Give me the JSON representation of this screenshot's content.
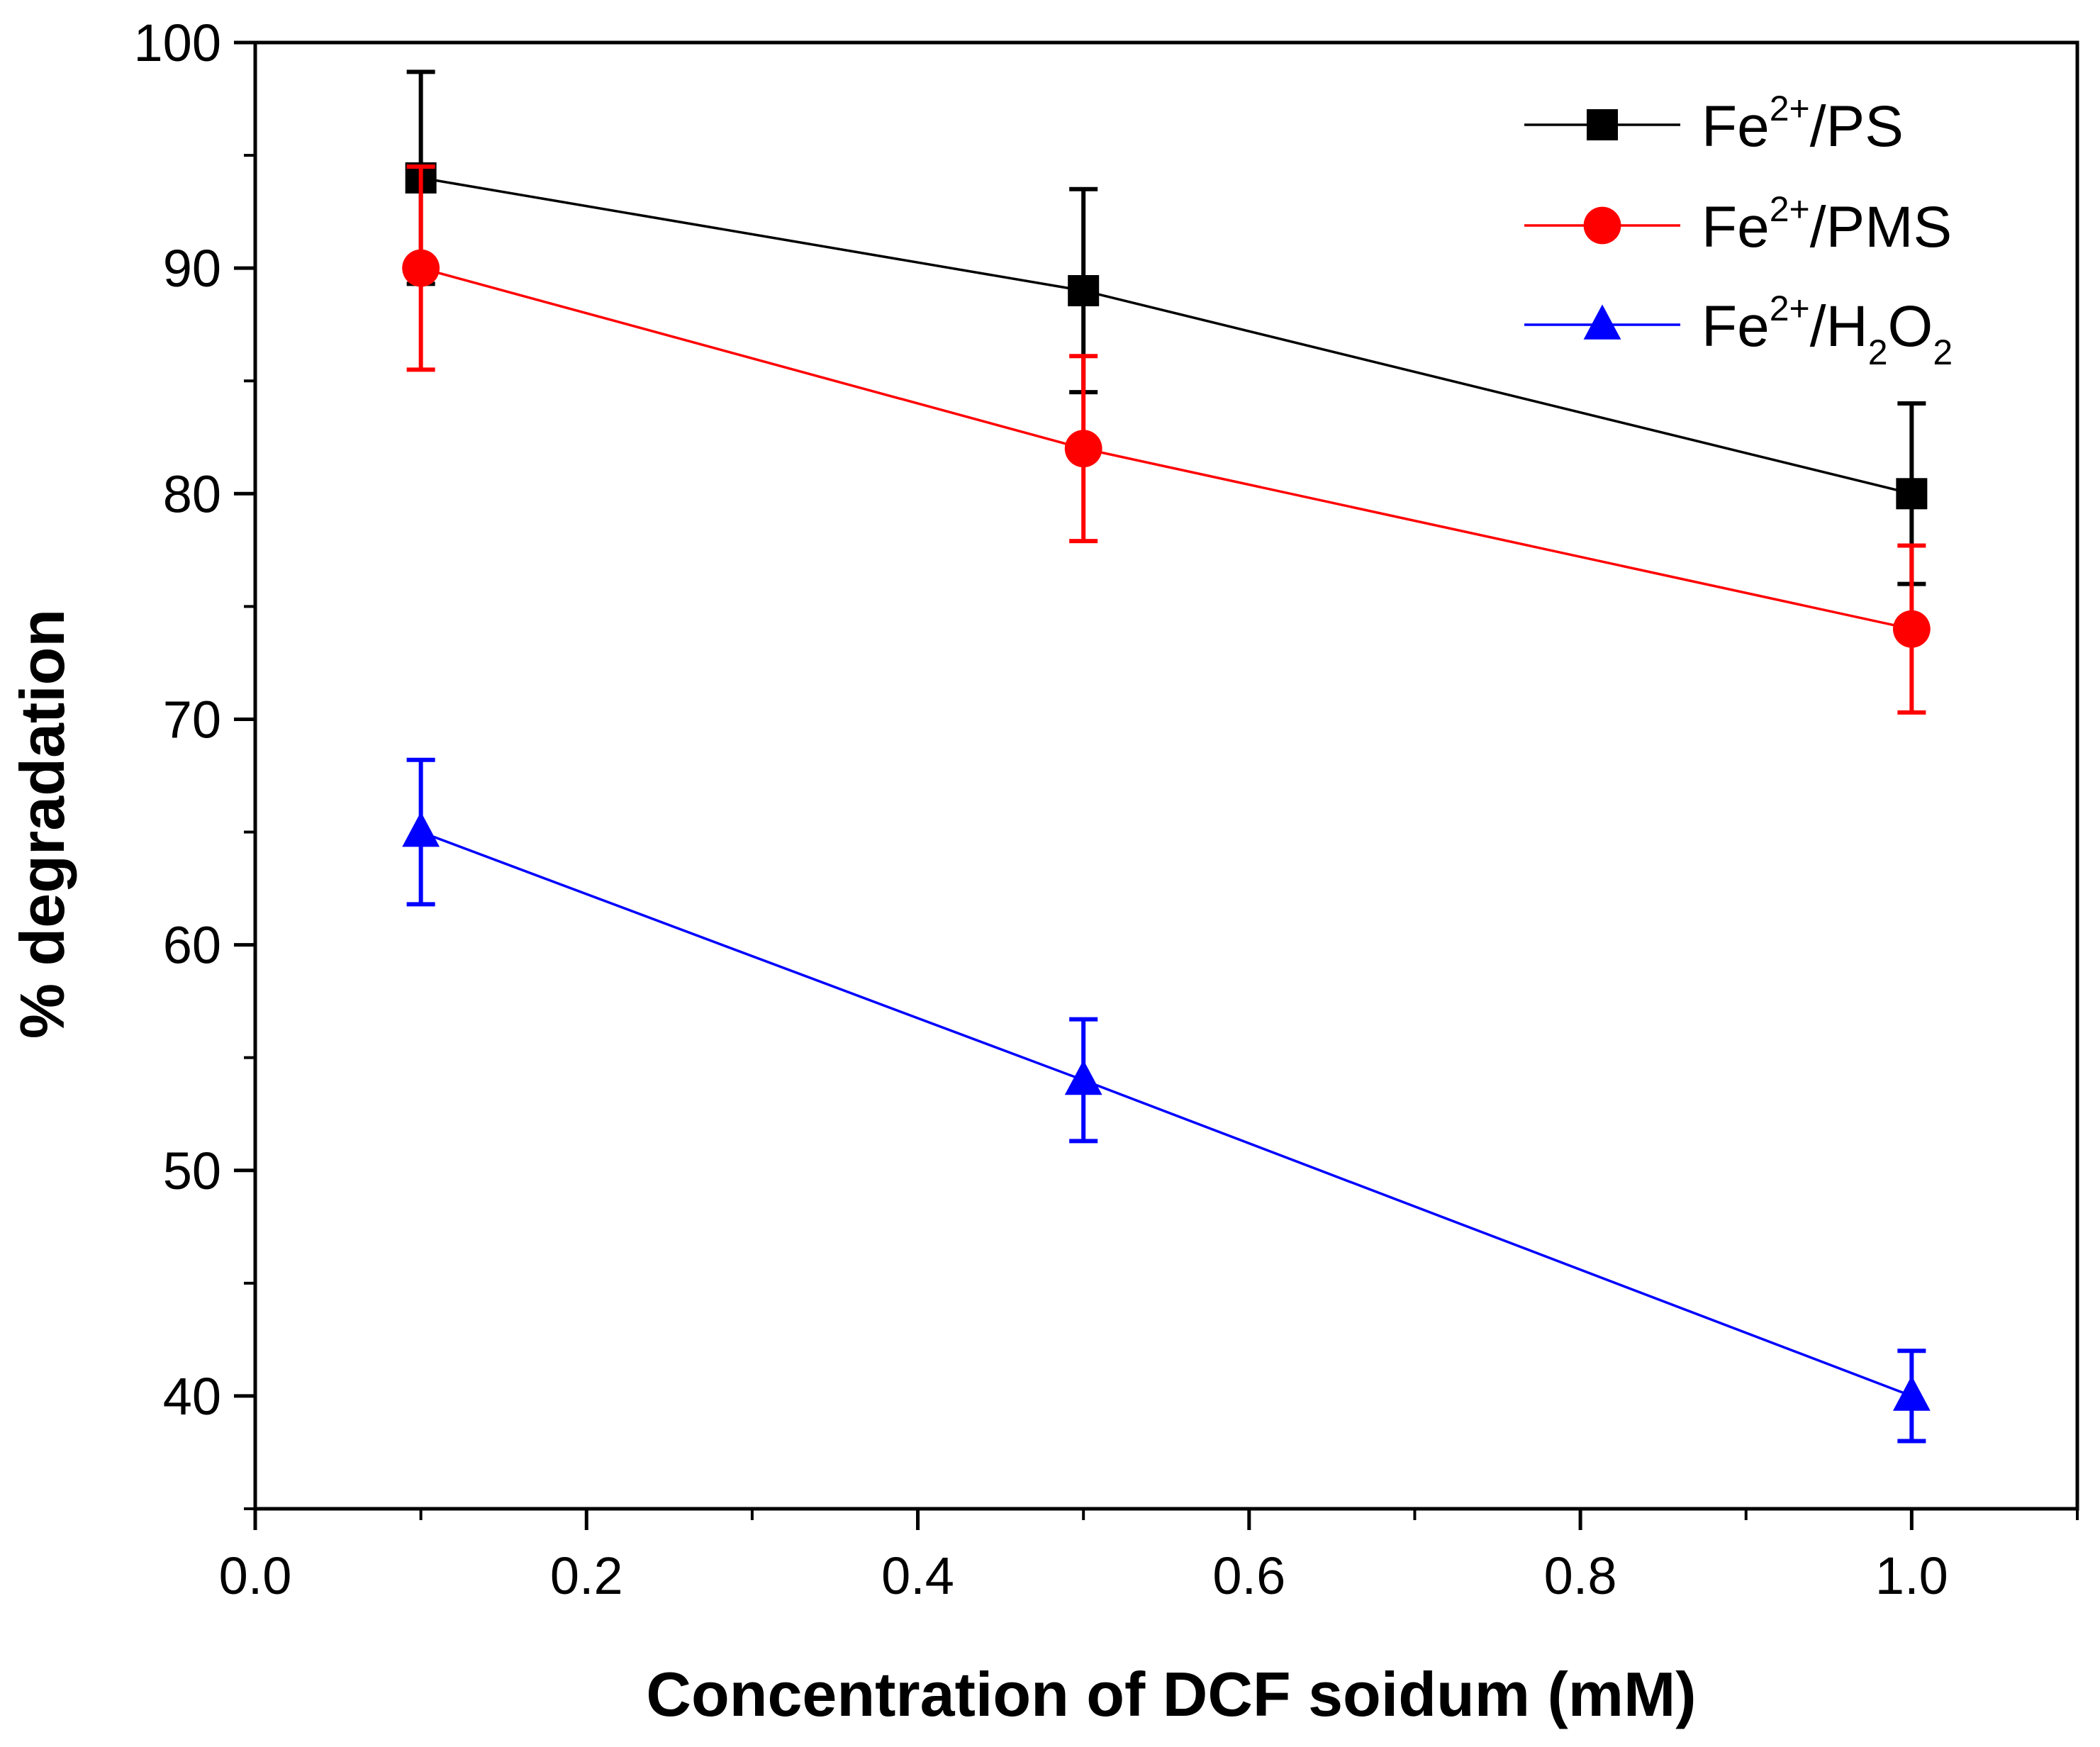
{
  "chart_data": {
    "type": "line",
    "title": "",
    "xlabel": "Concentration of DCF soidum (mM)",
    "ylabel": "% degradation",
    "xlim": [
      0.0,
      1.1
    ],
    "ylim": [
      35,
      100
    ],
    "xticks": [
      0.0,
      0.2,
      0.4,
      0.6,
      0.8,
      1.0
    ],
    "xtick_labels": [
      "0.0",
      "0.2",
      "0.4",
      "0.6",
      "0.8",
      "1.0"
    ],
    "yticks": [
      40,
      50,
      60,
      70,
      80,
      90,
      100
    ],
    "ytick_labels": [
      "40",
      "50",
      "60",
      "70",
      "80",
      "90",
      "100"
    ],
    "grid": false,
    "legend_position": "top-right",
    "x": [
      0.1,
      0.5,
      1.0
    ],
    "series": [
      {
        "name": "Fe2+/PS",
        "legend": {
          "base": "Fe",
          "sup": "2+",
          "rest": "/PS"
        },
        "color": "#000000",
        "marker": "square",
        "values": [
          94,
          89,
          80
        ],
        "errors": [
          4.7,
          4.5,
          4.0
        ]
      },
      {
        "name": "Fe2+/PMS",
        "legend": {
          "base": "Fe",
          "sup": "2+",
          "rest": "/PMS"
        },
        "color": "#ff0000",
        "marker": "circle",
        "values": [
          90,
          82,
          74
        ],
        "errors": [
          4.5,
          4.1,
          3.7
        ]
      },
      {
        "name": "Fe2+/H2O2",
        "legend": {
          "base": "Fe",
          "sup": "2+",
          "rest": "/H",
          "sub1": "2",
          "mid": "O",
          "sub2": "2"
        },
        "color": "#0000ff",
        "marker": "triangle",
        "values": [
          65,
          54,
          40
        ],
        "errors": [
          3.2,
          2.7,
          2.0
        ]
      }
    ]
  }
}
